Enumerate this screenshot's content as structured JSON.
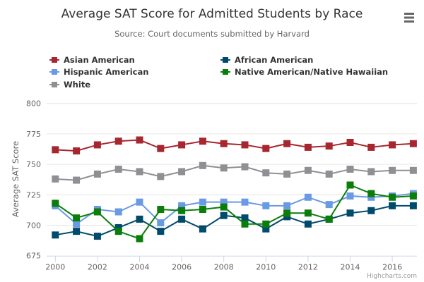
{
  "menu_icon": "hamburger-menu-icon",
  "credits": "Highcharts.com",
  "chart_data": {
    "type": "line",
    "title": "Average SAT Score for Admitted Students by Race",
    "subtitle": "Source: Court documents submitted by Harvard",
    "xlabel": "",
    "ylabel": "Average SAT Score",
    "x": [
      2000,
      2001,
      2002,
      2003,
      2004,
      2005,
      2006,
      2007,
      2008,
      2009,
      2010,
      2011,
      2012,
      2013,
      2014,
      2015,
      2016,
      2017
    ],
    "x_ticks": [
      "2000",
      "2002",
      "2004",
      "2006",
      "2008",
      "2010",
      "2012",
      "2014",
      "2016"
    ],
    "y_ticks": [
      "800",
      "775",
      "750",
      "725",
      "700",
      "675"
    ],
    "ylim": [
      675,
      800
    ],
    "grid": true,
    "legend_position": "top",
    "series": [
      {
        "name": "Asian American",
        "color": "#a8262f",
        "values": [
          762,
          761,
          766,
          769,
          770,
          763,
          766,
          769,
          767,
          766,
          763,
          767,
          764,
          765,
          768,
          764,
          766,
          767
        ]
      },
      {
        "name": "African American",
        "color": "#004b6b",
        "values": [
          692,
          695,
          691,
          698,
          705,
          695,
          705,
          697,
          708,
          706,
          697,
          707,
          701,
          705,
          710,
          712,
          716,
          716
        ]
      },
      {
        "name": "Hispanic American",
        "color": "#6a9ae3",
        "values": [
          716,
          701,
          713,
          711,
          719,
          702,
          716,
          719,
          719,
          719,
          716,
          716,
          723,
          717,
          724,
          723,
          724,
          726
        ]
      },
      {
        "name": "Native American/Native Hawaiian",
        "color": "#0a7d0a",
        "values": [
          718,
          706,
          711,
          695,
          689,
          713,
          712,
          713,
          715,
          701,
          701,
          710,
          710,
          705,
          733,
          726,
          723,
          724
        ]
      },
      {
        "name": "White",
        "color": "#909094",
        "values": [
          738,
          737,
          742,
          746,
          744,
          740,
          744,
          749,
          747,
          748,
          743,
          742,
          745,
          742,
          746,
          744,
          745,
          745
        ]
      }
    ]
  }
}
